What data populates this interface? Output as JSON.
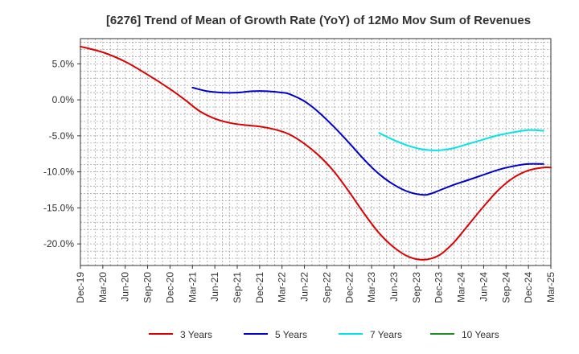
{
  "chart_data": {
    "type": "line",
    "title": "[6276]  Trend of Mean of Growth Rate (YoY) of 12Mo Mov Sum of Revenues",
    "xlabel": "",
    "ylabel": "",
    "ylim": [
      -23.0,
      8.5
    ],
    "y_ticks": [
      5,
      0,
      -5,
      -10,
      -15,
      -20
    ],
    "y_tick_labels": [
      "5.0%",
      "0.0%",
      "-5.0%",
      "-10.0%",
      "-15.0%",
      "-20.0%"
    ],
    "x_tick_labels": [
      "Dec-19",
      "Mar-20",
      "Jun-20",
      "Sep-20",
      "Dec-20",
      "Mar-21",
      "Jun-21",
      "Sep-21",
      "Dec-21",
      "Mar-22",
      "Jun-22",
      "Sep-22",
      "Dec-22",
      "Mar-23",
      "Jun-23",
      "Sep-23",
      "Dec-23",
      "Mar-24",
      "Jun-24",
      "Sep-24",
      "Dec-24",
      "Mar-25"
    ],
    "x_range_months": [
      0,
      63
    ],
    "grid": true,
    "legend_position": "bottom",
    "series": [
      {
        "name": "3 Years",
        "color": "#dd0000",
        "points": [
          [
            0,
            7.4
          ],
          [
            3,
            6.6
          ],
          [
            6,
            5.3
          ],
          [
            9,
            3.5
          ],
          [
            12,
            1.5
          ],
          [
            14,
            0.0
          ],
          [
            16,
            -1.6
          ],
          [
            18,
            -2.6
          ],
          [
            20,
            -3.2
          ],
          [
            22,
            -3.5
          ],
          [
            24,
            -3.7
          ],
          [
            26,
            -4.1
          ],
          [
            28,
            -4.8
          ],
          [
            30,
            -6.1
          ],
          [
            32,
            -7.8
          ],
          [
            34,
            -10.0
          ],
          [
            36,
            -12.8
          ],
          [
            38,
            -15.8
          ],
          [
            40,
            -18.5
          ],
          [
            42,
            -20.5
          ],
          [
            44,
            -21.8
          ],
          [
            46,
            -22.2
          ],
          [
            48,
            -21.6
          ],
          [
            50,
            -19.8
          ],
          [
            52,
            -17.3
          ],
          [
            54,
            -14.8
          ],
          [
            56,
            -12.5
          ],
          [
            58,
            -10.8
          ],
          [
            60,
            -9.8
          ],
          [
            62,
            -9.4
          ],
          [
            63,
            -9.4
          ]
        ]
      },
      {
        "name": "5 Years",
        "color": "#0000cc",
        "points": [
          [
            15,
            1.7
          ],
          [
            17,
            1.2
          ],
          [
            19,
            1.0
          ],
          [
            21,
            1.0
          ],
          [
            23,
            1.2
          ],
          [
            25,
            1.2
          ],
          [
            27,
            1.0
          ],
          [
            28,
            0.8
          ],
          [
            30,
            -0.2
          ],
          [
            32,
            -1.8
          ],
          [
            34,
            -3.8
          ],
          [
            36,
            -6.0
          ],
          [
            38,
            -8.3
          ],
          [
            40,
            -10.3
          ],
          [
            42,
            -11.8
          ],
          [
            44,
            -12.8
          ],
          [
            46,
            -13.2
          ],
          [
            47,
            -13.0
          ],
          [
            48,
            -12.6
          ],
          [
            50,
            -11.8
          ],
          [
            52,
            -11.1
          ],
          [
            54,
            -10.4
          ],
          [
            56,
            -9.7
          ],
          [
            58,
            -9.2
          ],
          [
            60,
            -8.9
          ],
          [
            62,
            -8.9
          ]
        ]
      },
      {
        "name": "7 Years",
        "color": "#00e5e5",
        "points": [
          [
            40,
            -4.6
          ],
          [
            42,
            -5.6
          ],
          [
            44,
            -6.4
          ],
          [
            46,
            -6.9
          ],
          [
            48,
            -7.0
          ],
          [
            50,
            -6.7
          ],
          [
            52,
            -6.1
          ],
          [
            54,
            -5.5
          ],
          [
            56,
            -4.9
          ],
          [
            58,
            -4.5
          ],
          [
            60,
            -4.2
          ],
          [
            62,
            -4.3
          ]
        ]
      },
      {
        "name": "10 Years",
        "color": "#228b22",
        "points": []
      }
    ]
  }
}
